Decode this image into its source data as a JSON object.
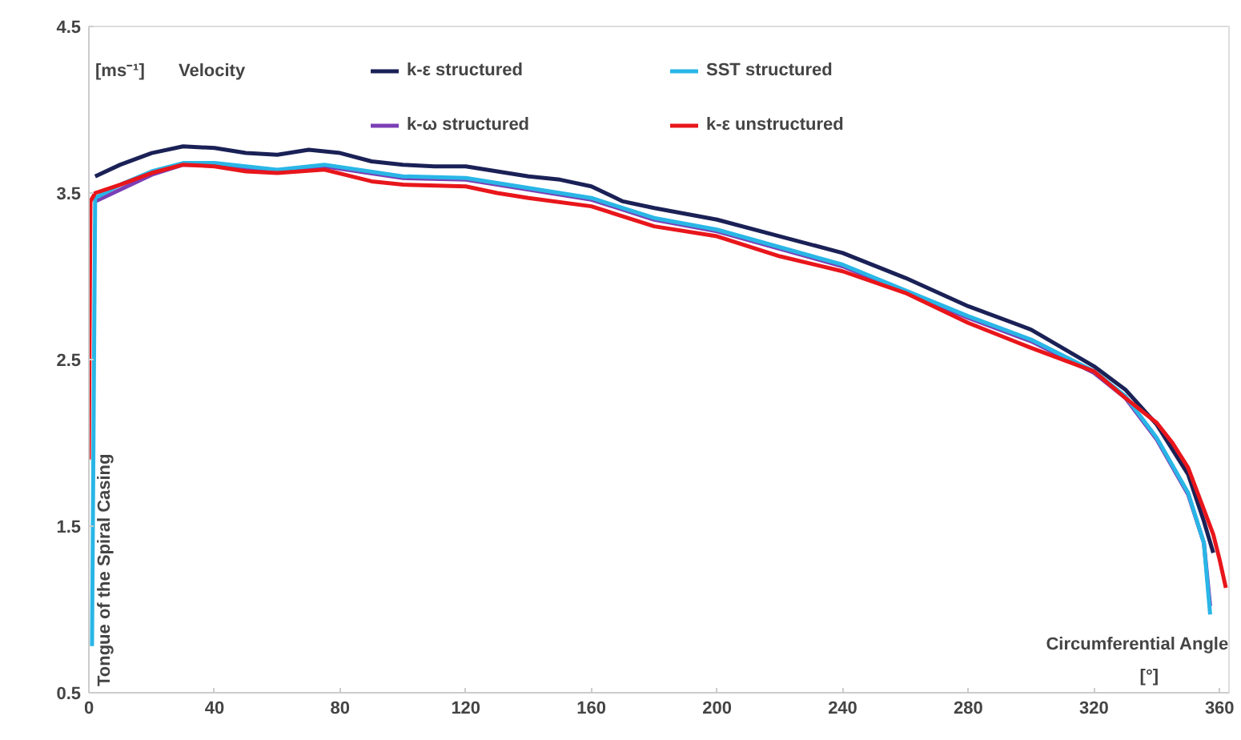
{
  "chart_data": {
    "type": "line",
    "xlabel": "[°]",
    "ylabel": "[ms⁻¹]",
    "annotations": [
      "Velocity",
      "Circumferential Angle",
      "Tongue of the Spiral Casing"
    ],
    "xlim": [
      0,
      363
    ],
    "ylim": [
      0.5,
      4.5
    ],
    "xticks": [
      0,
      40,
      80,
      120,
      160,
      200,
      240,
      280,
      320,
      360
    ],
    "yticks": [
      0.5,
      1.5,
      2.5,
      3.5,
      4.5
    ],
    "grid": false,
    "legend": "top",
    "marker": "none",
    "line_style": "solid",
    "series": [
      {
        "name": "k-ω structured",
        "color": "#7b3fb5",
        "x": [
          2,
          10,
          20,
          30,
          40,
          60,
          75,
          100,
          120,
          140,
          160,
          180,
          200,
          240,
          280,
          300,
          320,
          330,
          340,
          350,
          355,
          357
        ],
        "values": [
          3.45,
          3.52,
          3.61,
          3.67,
          3.67,
          3.63,
          3.66,
          3.59,
          3.58,
          3.52,
          3.46,
          3.34,
          3.27,
          3.06,
          2.75,
          2.61,
          2.42,
          2.27,
          2.02,
          1.69,
          1.4,
          1.02
        ]
      },
      {
        "name": "SST structured",
        "color": "#29b6e6",
        "x": [
          1,
          2,
          10,
          20,
          30,
          40,
          60,
          75,
          100,
          120,
          140,
          160,
          180,
          200,
          240,
          280,
          300,
          320,
          330,
          340,
          350,
          355,
          357
        ],
        "values": [
          0.78,
          3.47,
          3.55,
          3.63,
          3.68,
          3.68,
          3.64,
          3.67,
          3.6,
          3.59,
          3.53,
          3.47,
          3.35,
          3.28,
          3.07,
          2.76,
          2.62,
          2.43,
          2.28,
          2.03,
          1.7,
          1.4,
          0.97
        ]
      },
      {
        "name": "k-ε structured",
        "color": "#1a2156",
        "x": [
          2,
          10,
          20,
          30,
          40,
          50,
          60,
          70,
          80,
          90,
          100,
          110,
          120,
          130,
          140,
          150,
          160,
          170,
          180,
          200,
          220,
          240,
          260,
          280,
          300,
          320,
          330,
          340,
          350,
          355,
          358
        ],
        "values": [
          3.6,
          3.67,
          3.74,
          3.78,
          3.77,
          3.74,
          3.73,
          3.76,
          3.74,
          3.69,
          3.67,
          3.66,
          3.66,
          3.63,
          3.6,
          3.58,
          3.54,
          3.45,
          3.41,
          3.34,
          3.24,
          3.14,
          2.99,
          2.82,
          2.68,
          2.46,
          2.32,
          2.11,
          1.81,
          1.53,
          1.34
        ]
      },
      {
        "name": "k-ε unstructured",
        "color": "#e8161b",
        "x": [
          0,
          0.5,
          2,
          10,
          20,
          30,
          40,
          50,
          60,
          75,
          90,
          100,
          120,
          130,
          140,
          160,
          180,
          200,
          220,
          240,
          260,
          280,
          300,
          320,
          330,
          340,
          345,
          350,
          355,
          358,
          360,
          362
        ],
        "values": [
          1.9,
          3.45,
          3.5,
          3.55,
          3.62,
          3.67,
          3.66,
          3.63,
          3.62,
          3.64,
          3.57,
          3.55,
          3.54,
          3.5,
          3.47,
          3.42,
          3.3,
          3.24,
          3.12,
          3.03,
          2.9,
          2.72,
          2.57,
          2.43,
          2.27,
          2.12,
          2.0,
          1.85,
          1.6,
          1.45,
          1.3,
          1.13
        ]
      }
    ]
  }
}
